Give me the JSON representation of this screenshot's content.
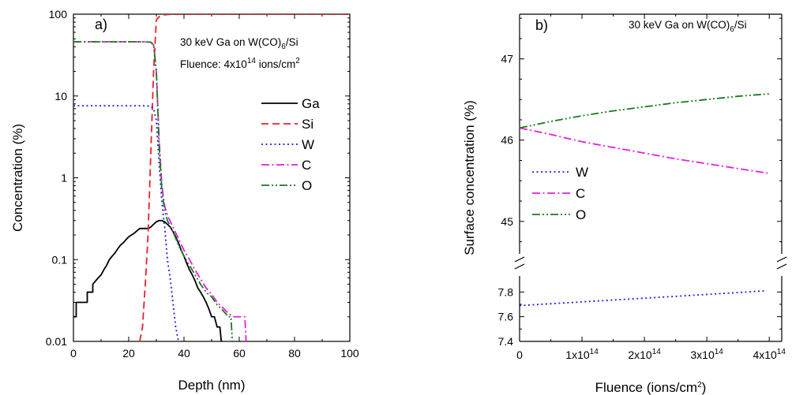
{
  "chart_data": [
    {
      "type": "line",
      "panel_label": "a)",
      "annotation": {
        "line1": "30 keV Ga on W(CO)",
        "line1_sub": "6",
        "line1_end": "/Si",
        "line2": "Fluence: 4x10",
        "line2_sup": "14",
        "line2_end": " ions/cm",
        "line2_sup2": "2"
      },
      "xlabel": "Depth (nm)",
      "ylabel": "Concentration (%)",
      "xlim": [
        0,
        100
      ],
      "ylim": [
        0.01,
        100
      ],
      "yscale": "log",
      "xticks": [
        0,
        20,
        40,
        60,
        80,
        100
      ],
      "xtick_labels": [
        "0",
        "20",
        "40",
        "60",
        "80",
        "100"
      ],
      "yticks": [
        0.01,
        0.1,
        1,
        10,
        100
      ],
      "ytick_labels": [
        "0.01",
        "0.1",
        "1",
        "10",
        "100"
      ],
      "legend_position": "center-right",
      "series": [
        {
          "name": "Ga",
          "color": "#000000",
          "dash": "solid",
          "x": [
            0,
            0,
            1,
            1,
            3,
            3,
            5,
            5,
            7,
            7,
            9,
            10,
            11,
            12,
            13,
            14,
            15,
            16,
            17,
            18,
            19,
            20,
            21,
            22,
            23,
            24,
            25,
            26,
            27,
            28,
            29,
            30,
            31,
            32,
            33,
            34,
            35,
            36,
            37,
            38,
            39,
            40,
            41,
            42,
            43,
            44,
            45,
            46,
            47,
            48,
            49,
            50,
            51,
            52,
            53,
            53.5,
            54
          ],
          "y": [
            0.02,
            0.02,
            0.02,
            0.03,
            0.03,
            0.03,
            0.03,
            0.04,
            0.04,
            0.05,
            0.06,
            0.065,
            0.075,
            0.085,
            0.1,
            0.11,
            0.12,
            0.135,
            0.15,
            0.16,
            0.175,
            0.19,
            0.2,
            0.21,
            0.225,
            0.24,
            0.24,
            0.24,
            0.24,
            0.25,
            0.27,
            0.29,
            0.3,
            0.3,
            0.29,
            0.27,
            0.25,
            0.22,
            0.19,
            0.16,
            0.13,
            0.11,
            0.09,
            0.075,
            0.065,
            0.055,
            0.045,
            0.04,
            0.035,
            0.03,
            0.025,
            0.02,
            0.02,
            0.015,
            0.015,
            0.01,
            0.01
          ]
        },
        {
          "name": "Si",
          "color": "#e8202a",
          "dash": "long",
          "x": [
            24,
            25,
            26,
            27,
            28,
            29,
            30,
            31,
            32,
            33,
            35,
            40,
            60,
            80,
            100
          ],
          "y": [
            0.01,
            0.015,
            0.05,
            0.2,
            2,
            20,
            85,
            93,
            97,
            98.5,
            99.5,
            99.7,
            99.7,
            99.7,
            99.7
          ]
        },
        {
          "name": "W",
          "color": "#1f1fdb",
          "dash": "dot",
          "x": [
            0,
            10,
            20,
            25,
            28,
            29,
            30,
            31,
            32,
            33,
            34,
            35,
            36,
            37,
            38
          ],
          "y": [
            7.6,
            7.6,
            7.6,
            7.6,
            7.5,
            7.0,
            5.0,
            1.5,
            0.5,
            0.25,
            0.1,
            0.06,
            0.03,
            0.015,
            0.01
          ]
        },
        {
          "name": "C",
          "color": "#e020e0",
          "dash": "dashdot",
          "x": [
            0,
            10,
            20,
            25,
            28,
            29,
            30,
            31,
            32,
            33,
            34,
            36,
            38,
            40,
            42,
            44,
            46,
            48,
            50,
            52,
            54,
            56,
            58,
            60,
            61,
            62,
            62.5
          ],
          "y": [
            46,
            46,
            46,
            46,
            45.5,
            42,
            20,
            3,
            0.8,
            0.45,
            0.35,
            0.25,
            0.18,
            0.13,
            0.1,
            0.075,
            0.058,
            0.045,
            0.038,
            0.03,
            0.026,
            0.022,
            0.02,
            0.02,
            0.02,
            0.02,
            0.01
          ]
        },
        {
          "name": "O",
          "color": "#1a7a1a",
          "dash": "dashdotdot",
          "x": [
            0,
            10,
            20,
            25,
            28,
            29,
            30,
            31,
            32,
            33,
            34,
            36,
            38,
            40,
            42,
            44,
            46,
            48,
            50,
            52,
            54,
            55,
            56,
            57,
            57.5
          ],
          "y": [
            46,
            46,
            46,
            46,
            45.5,
            42,
            20,
            2.5,
            0.7,
            0.4,
            0.3,
            0.22,
            0.15,
            0.11,
            0.085,
            0.065,
            0.05,
            0.04,
            0.035,
            0.028,
            0.024,
            0.022,
            0.02,
            0.02,
            0.01
          ]
        }
      ]
    },
    {
      "type": "line",
      "panel_label": "b)",
      "annotation": {
        "line1": "30 keV Ga on W(CO)",
        "line1_sub": "6",
        "line1_end": "/Si"
      },
      "xlabel": "Fluence (ions/cm",
      "xlabel_sup": "2",
      "xlabel_end": ")",
      "ylabel": "Surface concentration (%)",
      "xlim": [
        0,
        420000000000000.0
      ],
      "axis_break": true,
      "ylim_upper": [
        44.6,
        47.55
      ],
      "ylim_lower": [
        7.4,
        7.93
      ],
      "upper_yticks": [
        45,
        46,
        47
      ],
      "upper_ytick_labels": [
        "45",
        "46",
        "47"
      ],
      "lower_yticks": [
        7.4,
        7.6,
        7.8
      ],
      "lower_ytick_labels": [
        "7.4",
        "7.6",
        "7.8"
      ],
      "xticks": [
        0,
        100000000000000.0,
        200000000000000.0,
        300000000000000.0,
        400000000000000.0
      ],
      "xtick_labels": [
        {
          "base": "0",
          "sup": ""
        },
        {
          "base": "1x10",
          "sup": "14"
        },
        {
          "base": "2x10",
          "sup": "14"
        },
        {
          "base": "3x10",
          "sup": "14"
        },
        {
          "base": "4x10",
          "sup": "14"
        }
      ],
      "legend_position": "center-left",
      "series": [
        {
          "name": "W",
          "color": "#1f1fdb",
          "dash": "dot",
          "axis": "lower",
          "x": [
            0,
            100000000000000.0,
            200000000000000.0,
            300000000000000.0,
            395000000000000.0
          ],
          "y": [
            7.69,
            7.72,
            7.75,
            7.78,
            7.81
          ]
        },
        {
          "name": "C",
          "color": "#e020e0",
          "dash": "dashdot",
          "axis": "upper",
          "x": [
            0,
            50000000000000.0,
            100000000000000.0,
            150000000000000.0,
            200000000000000.0,
            250000000000000.0,
            300000000000000.0,
            350000000000000.0,
            400000000000000.0
          ],
          "y": [
            46.15,
            46.07,
            45.98,
            45.91,
            45.84,
            45.77,
            45.71,
            45.65,
            45.59
          ]
        },
        {
          "name": "O",
          "color": "#1a7a1a",
          "dash": "dashdotdot",
          "axis": "upper",
          "x": [
            0,
            50000000000000.0,
            100000000000000.0,
            150000000000000.0,
            200000000000000.0,
            250000000000000.0,
            300000000000000.0,
            350000000000000.0,
            400000000000000.0
          ],
          "y": [
            46.15,
            46.23,
            46.3,
            46.36,
            46.41,
            46.46,
            46.5,
            46.54,
            46.57
          ]
        }
      ]
    }
  ]
}
